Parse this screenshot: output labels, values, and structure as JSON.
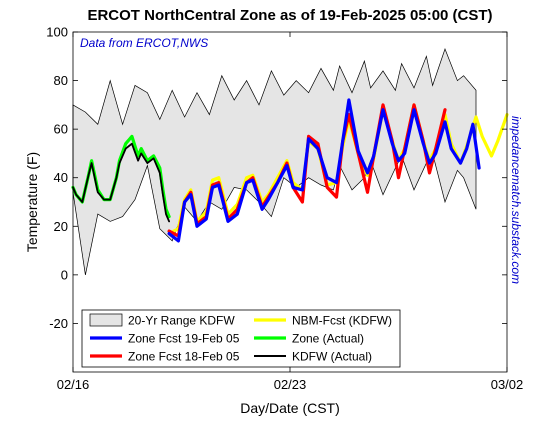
{
  "chart_data": {
    "type": "line",
    "title": "ERCOT NorthCentral Zone as of 19-Feb-2025 05:00 (CST)",
    "annotation": "Data from ERCOT,NWS",
    "side_label": "impedancematch.substack.com",
    "xlabel": "Day/Date (CST)",
    "ylabel": "Temperature (F)",
    "xlim": [
      0,
      14
    ],
    "ylim": [
      -40,
      100
    ],
    "x_ticks": [
      {
        "x": 0,
        "label": "02/16"
      },
      {
        "x": 7,
        "label": "02/23"
      },
      {
        "x": 14,
        "label": "03/02"
      }
    ],
    "y_ticks": [
      -20,
      0,
      20,
      40,
      60,
      80,
      100
    ],
    "grid": false,
    "legend_position": "bottom-left",
    "legend": [
      {
        "label": "20-Yr Range KDFW",
        "kind": "patch",
        "color": "#e5e5e5"
      },
      {
        "label": "NBM-Fcst (KDFW)",
        "kind": "line",
        "color": "#ffff00"
      },
      {
        "label": "Zone Fcst 19-Feb 05",
        "kind": "line",
        "color": "#0000ff"
      },
      {
        "label": "Zone (Actual)",
        "kind": "line",
        "color": "#00ff00"
      },
      {
        "label": "Zone Fcst 18-Feb 05",
        "kind": "line",
        "color": "#ff0000"
      },
      {
        "label": "KDFW (Actual)",
        "kind": "line",
        "color": "#000000"
      }
    ],
    "range_band": {
      "x": [
        0,
        0.4,
        0.8,
        1.2,
        1.6,
        2.0,
        2.4,
        2.8,
        3.2,
        3.6,
        4.0,
        4.4,
        4.8,
        5.2,
        5.6,
        6.0,
        6.4,
        6.8,
        7.2,
        7.6,
        8.0,
        8.4,
        8.6,
        9.0,
        9.4,
        9.6,
        10.0,
        10.4,
        10.6,
        11.0,
        11.4,
        11.6,
        12.0,
        12.4,
        12.6,
        13.0
      ],
      "upper": [
        70,
        67,
        62,
        80,
        62,
        78,
        75,
        64,
        76,
        65,
        75,
        66,
        82,
        72,
        80,
        70,
        84,
        74,
        80,
        75,
        85,
        76,
        86,
        75,
        88,
        77,
        84,
        76,
        87,
        77,
        90,
        78,
        93,
        80,
        82,
        76
      ],
      "lower": [
        34,
        0,
        25,
        22,
        24,
        31,
        45,
        19,
        14,
        28,
        22,
        30,
        27,
        36,
        35,
        30,
        24,
        40,
        36,
        40,
        37,
        35,
        45,
        35,
        40,
        47,
        33,
        44,
        49,
        35,
        46,
        50,
        30,
        43,
        40,
        27
      ]
    },
    "series": [
      {
        "name": "KDFW (Actual)",
        "color": "#000000",
        "x": [
          0,
          0.1,
          0.3,
          0.5,
          0.6,
          0.8,
          1.0,
          1.2,
          1.4,
          1.5,
          1.7,
          1.9,
          2.1,
          2.2,
          2.4,
          2.6,
          2.8,
          2.9,
          3.0,
          3.1
        ],
        "y": [
          36,
          33,
          30,
          41,
          46,
          34,
          31,
          31,
          40,
          46,
          52,
          54,
          47,
          50,
          46,
          48,
          42,
          33,
          25,
          22
        ]
      },
      {
        "name": "Zone (Actual)",
        "color": "#00ff00",
        "x": [
          0,
          0.1,
          0.3,
          0.5,
          0.6,
          0.8,
          1.0,
          1.2,
          1.4,
          1.5,
          1.7,
          1.9,
          2.1,
          2.2,
          2.4,
          2.6,
          2.8,
          2.9,
          3.0,
          3.1
        ],
        "y": [
          36,
          33,
          30,
          41,
          47,
          35,
          31,
          31,
          40,
          47,
          54,
          57,
          49,
          52,
          47,
          49,
          44,
          35,
          27,
          24
        ]
      },
      {
        "name": "NBM-Fcst (KDFW)",
        "color": "#ffff00",
        "x": [
          3.1,
          3.4,
          3.6,
          3.8,
          4.0,
          4.3,
          4.5,
          4.7,
          5.0,
          5.3,
          5.6,
          5.8,
          6.1,
          6.3,
          6.6,
          6.9,
          7.1,
          7.4,
          7.6,
          7.9,
          8.2,
          8.5,
          8.7,
          8.9,
          9.2,
          9.5,
          9.7,
          10.0,
          10.3,
          10.5,
          10.7,
          11.0,
          11.3,
          11.5,
          11.7,
          12.0,
          12.2,
          12.5,
          12.7,
          13.0,
          13.2,
          13.5,
          13.7,
          14.0
        ],
        "y": [
          17,
          19,
          31,
          35,
          22,
          26,
          39,
          40,
          25,
          29,
          40,
          41,
          30,
          33,
          40,
          47,
          38,
          35,
          55,
          52,
          37,
          38,
          53,
          64,
          50,
          41,
          48,
          68,
          55,
          47,
          52,
          70,
          55,
          47,
          52,
          66,
          54,
          46,
          53,
          65,
          57,
          49,
          55,
          66
        ]
      },
      {
        "name": "Zone Fcst 18-Feb 05",
        "color": "#ff0000",
        "x": [
          3.1,
          3.4,
          3.6,
          3.8,
          4.0,
          4.3,
          4.5,
          4.7,
          5.0,
          5.3,
          5.6,
          5.8,
          6.1,
          6.3,
          6.6,
          6.9,
          7.1,
          7.4,
          7.6,
          7.9,
          8.2,
          8.5,
          8.7,
          8.9,
          9.2,
          9.5,
          9.7,
          10.0,
          10.3,
          10.5,
          10.7,
          11.0,
          11.3,
          11.5,
          11.7,
          12.0
        ],
        "y": [
          18,
          16,
          30,
          34,
          21,
          24,
          37,
          38,
          23,
          27,
          38,
          40,
          28,
          32,
          38,
          46,
          36,
          30,
          57,
          54,
          36,
          32,
          55,
          66,
          50,
          34,
          49,
          70,
          55,
          40,
          52,
          70,
          55,
          42,
          52,
          68
        ]
      },
      {
        "name": "Zone Fcst 19-Feb 05",
        "color": "#0000ff",
        "x": [
          3.1,
          3.4,
          3.6,
          3.8,
          4.0,
          4.3,
          4.5,
          4.7,
          5.0,
          5.3,
          5.6,
          5.8,
          6.1,
          6.3,
          6.6,
          6.9,
          7.1,
          7.4,
          7.6,
          7.9,
          8.2,
          8.5,
          8.7,
          8.9,
          9.2,
          9.5,
          9.7,
          10.0,
          10.3,
          10.5,
          10.7,
          11.0,
          11.3,
          11.5,
          11.7,
          12.0,
          12.2,
          12.5,
          12.7,
          12.9,
          13.1
        ],
        "y": [
          17,
          14,
          30,
          33,
          20,
          23,
          36,
          37,
          22,
          25,
          38,
          39,
          27,
          31,
          38,
          45,
          36,
          35,
          56,
          52,
          40,
          38,
          55,
          72,
          51,
          42,
          49,
          68,
          54,
          47,
          50,
          68,
          54,
          46,
          50,
          63,
          52,
          46,
          52,
          62,
          44
        ]
      }
    ]
  }
}
